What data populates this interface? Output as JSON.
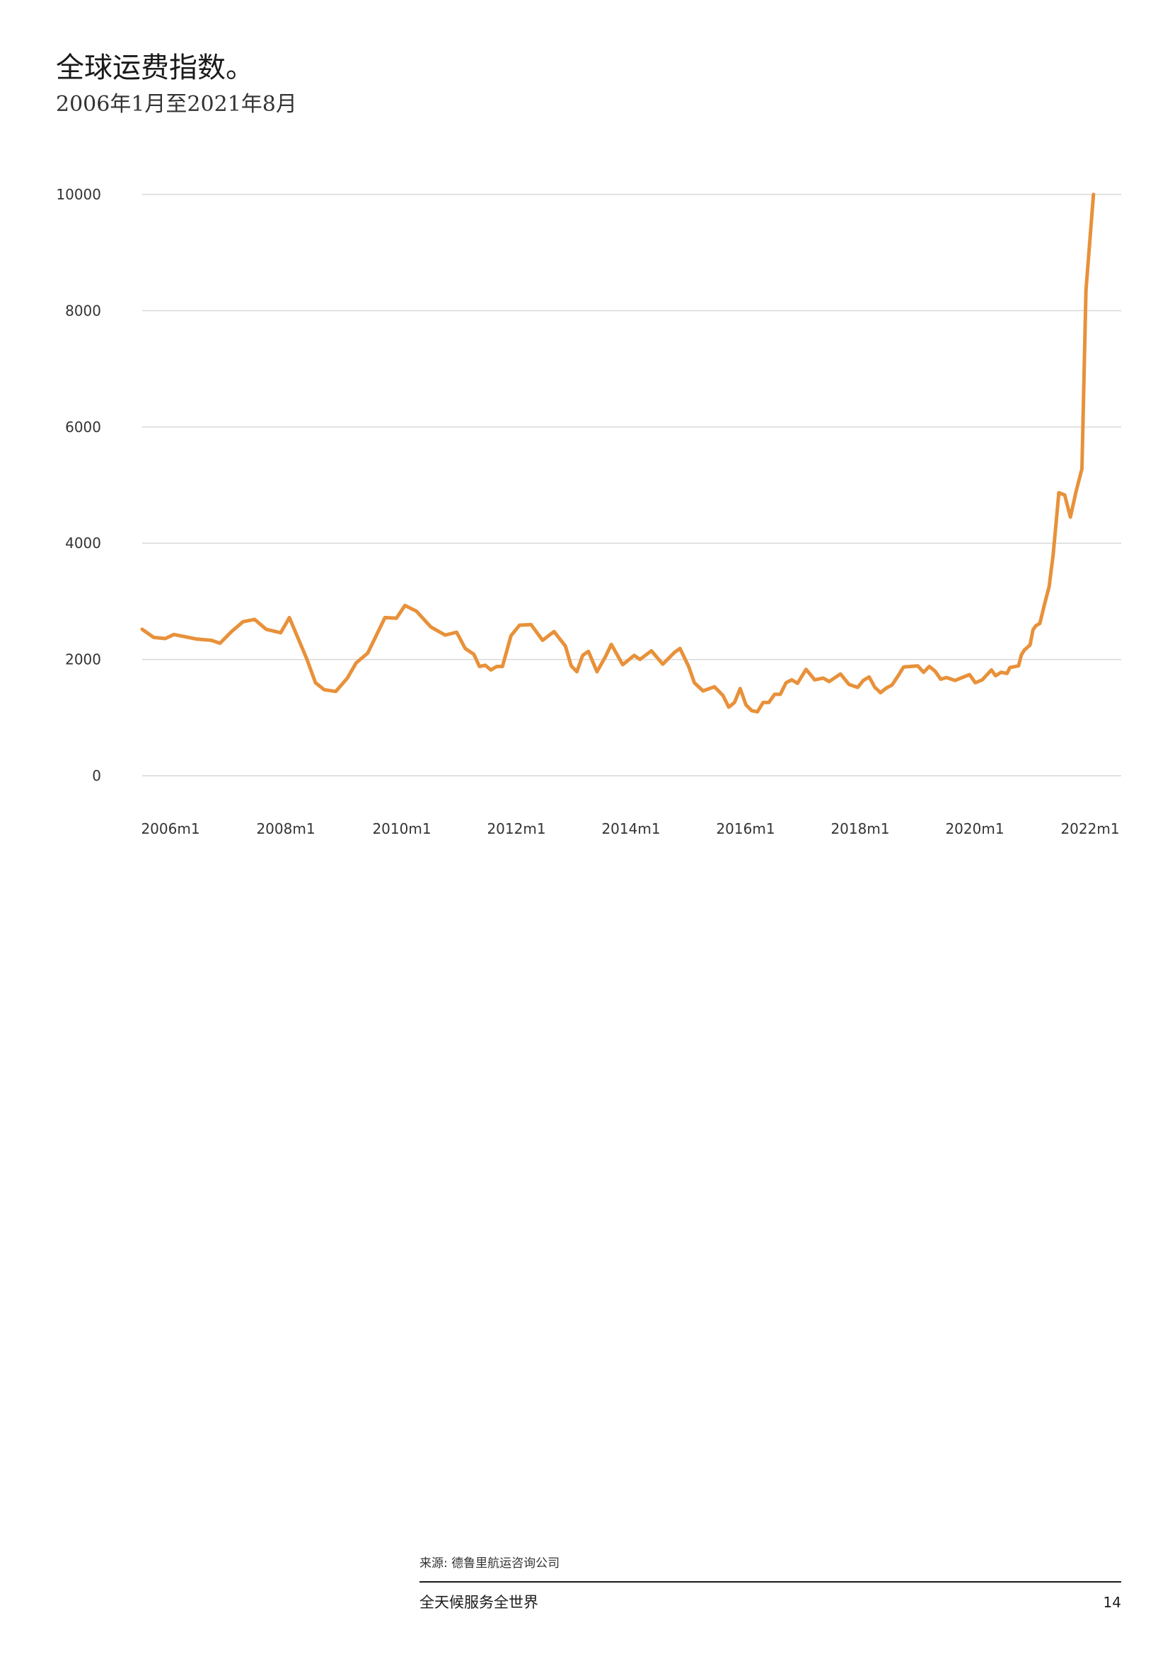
{
  "chart_data": {
    "type": "line",
    "title": "全球运费指数。",
    "subtitle": "2006年1月至2021年8月",
    "xlabel": "",
    "ylabel": "",
    "x_unit": "years",
    "xlim": [
      2006.0,
      2022.0
    ],
    "ylim": [
      0,
      10000
    ],
    "yticks": [
      0,
      2000,
      4000,
      6000,
      8000,
      10000
    ],
    "xticks": [
      {
        "value": 2006,
        "label": "2006m1"
      },
      {
        "value": 2008,
        "label": "2008m1"
      },
      {
        "value": 2010,
        "label": "2010m1"
      },
      {
        "value": 2012,
        "label": "2012m1"
      },
      {
        "value": 2014,
        "label": "2014m1"
      },
      {
        "value": 2016,
        "label": "2016m1"
      },
      {
        "value": 2018,
        "label": "2018m1"
      },
      {
        "value": 2020,
        "label": "2020m1"
      },
      {
        "value": 2022,
        "label": "2022m1"
      }
    ],
    "grid": true,
    "legend": "none",
    "series": [
      {
        "color": "#E8913A",
        "points": [
          [
            2006.0,
            2520
          ],
          [
            2006.2,
            2380
          ],
          [
            2006.4,
            2360
          ],
          [
            2006.55,
            2430
          ],
          [
            2006.75,
            2390
          ],
          [
            2006.95,
            2350
          ],
          [
            2007.2,
            2330
          ],
          [
            2007.35,
            2280
          ],
          [
            2007.55,
            2480
          ],
          [
            2007.75,
            2650
          ],
          [
            2007.95,
            2690
          ],
          [
            2008.15,
            2520
          ],
          [
            2008.4,
            2460
          ],
          [
            2008.55,
            2720
          ],
          [
            2008.85,
            2010
          ],
          [
            2009.0,
            1600
          ],
          [
            2009.15,
            1480
          ],
          [
            2009.35,
            1450
          ],
          [
            2009.55,
            1680
          ],
          [
            2009.7,
            1940
          ],
          [
            2009.9,
            2110
          ],
          [
            2010.2,
            2720
          ],
          [
            2010.4,
            2710
          ],
          [
            2010.55,
            2930
          ],
          [
            2010.75,
            2830
          ],
          [
            2011.0,
            2560
          ],
          [
            2011.25,
            2420
          ],
          [
            2011.45,
            2470
          ],
          [
            2011.6,
            2190
          ],
          [
            2011.75,
            2090
          ],
          [
            2011.85,
            1880
          ],
          [
            2011.95,
            1900
          ],
          [
            2012.05,
            1820
          ],
          [
            2012.15,
            1880
          ],
          [
            2012.25,
            1880
          ],
          [
            2012.4,
            2410
          ],
          [
            2012.55,
            2590
          ],
          [
            2012.75,
            2600
          ],
          [
            2012.95,
            2330
          ],
          [
            2013.15,
            2480
          ],
          [
            2013.35,
            2230
          ],
          [
            2013.45,
            1890
          ],
          [
            2013.55,
            1790
          ],
          [
            2013.65,
            2070
          ],
          [
            2013.75,
            2140
          ],
          [
            2013.9,
            1790
          ],
          [
            2014.05,
            2050
          ],
          [
            2014.15,
            2260
          ],
          [
            2014.35,
            1910
          ],
          [
            2014.55,
            2070
          ],
          [
            2014.65,
            2000
          ],
          [
            2014.85,
            2150
          ],
          [
            2015.05,
            1920
          ],
          [
            2015.25,
            2120
          ],
          [
            2015.35,
            2190
          ],
          [
            2015.5,
            1880
          ],
          [
            2015.6,
            1600
          ],
          [
            2015.75,
            1460
          ],
          [
            2015.95,
            1530
          ],
          [
            2016.1,
            1380
          ],
          [
            2016.2,
            1180
          ],
          [
            2016.3,
            1260
          ],
          [
            2016.4,
            1500
          ],
          [
            2016.5,
            1220
          ],
          [
            2016.6,
            1120
          ],
          [
            2016.7,
            1100
          ],
          [
            2016.8,
            1260
          ],
          [
            2016.9,
            1260
          ],
          [
            2017.0,
            1400
          ],
          [
            2017.1,
            1400
          ],
          [
            2017.2,
            1600
          ],
          [
            2017.3,
            1650
          ],
          [
            2017.4,
            1590
          ],
          [
            2017.55,
            1830
          ],
          [
            2017.7,
            1650
          ],
          [
            2017.85,
            1680
          ],
          [
            2017.95,
            1620
          ],
          [
            2018.15,
            1750
          ],
          [
            2018.3,
            1570
          ],
          [
            2018.45,
            1520
          ],
          [
            2018.55,
            1640
          ],
          [
            2018.65,
            1700
          ],
          [
            2018.75,
            1520
          ],
          [
            2018.85,
            1430
          ],
          [
            2018.95,
            1510
          ],
          [
            2019.05,
            1560
          ],
          [
            2019.15,
            1710
          ],
          [
            2019.25,
            1870
          ],
          [
            2019.5,
            1890
          ],
          [
            2019.6,
            1780
          ],
          [
            2019.7,
            1880
          ],
          [
            2019.8,
            1800
          ],
          [
            2019.9,
            1660
          ],
          [
            2020.0,
            1690
          ],
          [
            2020.15,
            1640
          ],
          [
            2020.4,
            1740
          ],
          [
            2020.5,
            1600
          ],
          [
            2020.62,
            1650
          ],
          [
            2020.78,
            1820
          ],
          [
            2020.85,
            1720
          ],
          [
            2020.95,
            1780
          ],
          [
            2021.05,
            1760
          ],
          [
            2021.1,
            1860
          ],
          [
            2021.25,
            1890
          ],
          [
            2021.3,
            2080
          ],
          [
            2021.35,
            2160
          ],
          [
            2021.45,
            2250
          ],
          [
            2021.5,
            2510
          ],
          [
            2021.55,
            2580
          ],
          [
            2021.62,
            2620
          ],
          [
            2021.7,
            2950
          ],
          [
            2021.78,
            3250
          ],
          [
            2021.85,
            3800
          ],
          [
            2021.95,
            4870
          ],
          [
            2022.05,
            4830
          ],
          [
            2022.15,
            4450
          ],
          [
            2022.25,
            4900
          ],
          [
            2022.35,
            5280
          ],
          [
            2022.42,
            8350
          ],
          [
            2022.55,
            10000
          ]
        ]
      }
    ]
  },
  "source": "来源: 德鲁里航运咨询公司",
  "footer": {
    "title": "全天候服务全世界",
    "page": "14"
  }
}
